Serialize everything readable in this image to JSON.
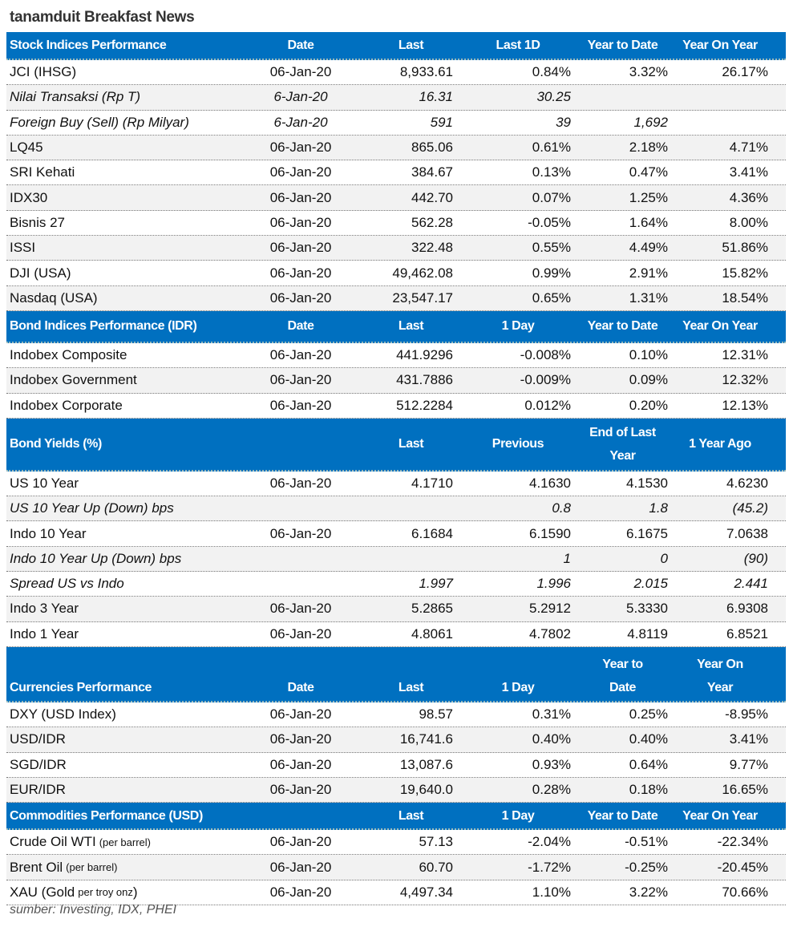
{
  "title": "tanamduit Breakfast News",
  "colors": {
    "header_bg": "#0070c0",
    "alt_row_bg": "#f2f2f2"
  },
  "sections": [
    {
      "header": [
        "Stock Indices Performance",
        "Date",
        "Last",
        "Last 1D",
        "Year to Date",
        "Year On Year"
      ],
      "rows": [
        {
          "cells": [
            "JCI (IHSG)",
            "06-Jan-20",
            "8,933.61",
            "0.84%",
            "3.32%",
            "26.17%"
          ]
        },
        {
          "cells": [
            "Nilai Transaksi (Rp T)",
            "6-Jan-20",
            "16.31",
            "30.25",
            "",
            ""
          ],
          "italic": true
        },
        {
          "cells": [
            "Foreign Buy (Sell) (Rp Milyar)",
            "6-Jan-20",
            "591",
            "39",
            "1,692",
            ""
          ],
          "italic": true
        },
        {
          "cells": [
            "LQ45",
            "06-Jan-20",
            "865.06",
            "0.61%",
            "2.18%",
            "4.71%"
          ]
        },
        {
          "cells": [
            "SRI Kehati",
            "06-Jan-20",
            "384.67",
            "0.13%",
            "0.47%",
            "3.41%"
          ]
        },
        {
          "cells": [
            "IDX30",
            "06-Jan-20",
            "442.70",
            "0.07%",
            "1.25%",
            "4.36%"
          ]
        },
        {
          "cells": [
            "Bisnis 27",
            "06-Jan-20",
            "562.28",
            "-0.05%",
            "1.64%",
            "8.00%"
          ]
        },
        {
          "cells": [
            "ISSI",
            "06-Jan-20",
            "322.48",
            "0.55%",
            "4.49%",
            "51.86%"
          ]
        },
        {
          "cells": [
            "DJI (USA)",
            "06-Jan-20",
            "49,462.08",
            "0.99%",
            "2.91%",
            "15.82%"
          ]
        },
        {
          "cells": [
            "Nasdaq (USA)",
            "06-Jan-20",
            "23,547.17",
            "0.65%",
            "1.31%",
            "18.54%"
          ]
        }
      ]
    },
    {
      "header": [
        "Bond Indices Performance (IDR)",
        "Date",
        "Last",
        "1 Day",
        "Year to Date",
        "Year On Year"
      ],
      "rows": [
        {
          "cells": [
            "Indobex Composite",
            "06-Jan-20",
            "441.9296",
            "-0.008%",
            "0.10%",
            "12.31%"
          ]
        },
        {
          "cells": [
            "Indobex Government",
            "06-Jan-20",
            "431.7886",
            "-0.009%",
            "0.09%",
            "12.32%"
          ]
        },
        {
          "cells": [
            "Indobex Corporate",
            "06-Jan-20",
            "512.2284",
            "0.012%",
            "0.20%",
            "12.13%"
          ]
        }
      ]
    },
    {
      "header": [
        "Bond Yields (%)",
        "",
        "Last",
        "Previous",
        "End of Last\nYear",
        "1 Year Ago"
      ],
      "rows": [
        {
          "cells": [
            "US 10 Year",
            "06-Jan-20",
            "4.1710",
            "4.1630",
            "4.1530",
            "4.6230"
          ]
        },
        {
          "cells": [
            "US 10 Year Up (Down) bps",
            "",
            "",
            "0.8",
            "1.8",
            "(45.2)"
          ],
          "italic": true
        },
        {
          "cells": [
            "Indo 10 Year",
            "06-Jan-20",
            "6.1684",
            "6.1590",
            "6.1675",
            "7.0638"
          ]
        },
        {
          "cells": [
            "Indo 10 Year Up (Down) bps",
            "",
            "",
            "1",
            "0",
            "(90)"
          ],
          "italic": true
        },
        {
          "cells": [
            "Spread US vs Indo",
            "",
            "1.997",
            "1.996",
            "2.015",
            "2.441"
          ],
          "italic": true
        },
        {
          "cells": [
            "Indo 3 Year",
            "06-Jan-20",
            "5.2865",
            "5.2912",
            "5.3330",
            "6.9308"
          ]
        },
        {
          "cells": [
            "Indo 1 Year",
            "06-Jan-20",
            "4.8061",
            "4.7802",
            "4.8119",
            "6.8521"
          ]
        }
      ]
    },
    {
      "header": [
        "Currencies Performance",
        "Date",
        "Last",
        "1 Day",
        "Year to\nDate",
        "Year On\nYear"
      ],
      "rows": [
        {
          "cells": [
            "DXY (USD Index)",
            "06-Jan-20",
            "98.57",
            "0.31%",
            "0.25%",
            "-8.95%"
          ]
        },
        {
          "cells": [
            "USD/IDR",
            "06-Jan-20",
            "16,741.6",
            "0.40%",
            "0.40%",
            "3.41%"
          ]
        },
        {
          "cells": [
            "SGD/IDR",
            "06-Jan-20",
            "13,087.6",
            "0.93%",
            "0.64%",
            "9.77%"
          ]
        },
        {
          "cells": [
            "EUR/IDR",
            "06-Jan-20",
            "19,640.0",
            "0.28%",
            "0.18%",
            "16.65%"
          ]
        }
      ]
    },
    {
      "header": [
        "Commodities Performance (USD)",
        "",
        "Last",
        "1 Day",
        "Year to Date",
        "Year On Year"
      ],
      "rows": [
        {
          "cells": [
            "Crude Oil WTI",
            "06-Jan-20",
            "57.13",
            "-2.04%",
            "-0.51%",
            "-22.34%"
          ],
          "note": "(per barrel)",
          "suffix": ""
        },
        {
          "cells": [
            "Brent Oil",
            "06-Jan-20",
            "60.70",
            "-1.72%",
            "-0.25%",
            "-20.45%"
          ],
          "note": "(per barrel)",
          "suffix": ""
        },
        {
          "cells": [
            "XAU (Gold",
            "06-Jan-20",
            "4,497.34",
            "1.10%",
            "3.22%",
            "70.66%"
          ],
          "note": "per troy onz",
          "suffix": ")"
        }
      ]
    }
  ],
  "footer": "sumber: Investing, IDX, PHEI"
}
